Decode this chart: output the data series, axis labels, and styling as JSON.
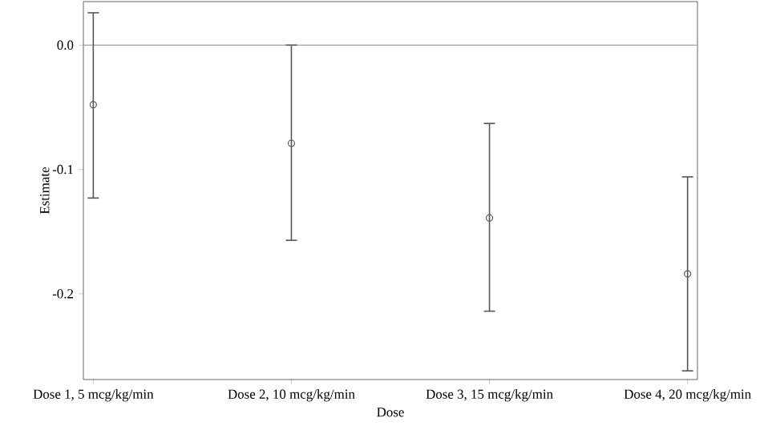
{
  "chart_data": {
    "type": "scatter",
    "xlabel": "Dose",
    "ylabel": "Estimate",
    "categories": [
      "Dose 1, 5 mcg/kg/min",
      "Dose 2, 10 mcg/kg/min",
      "Dose 3, 15 mcg/kg/min",
      "Dose 4, 20 mcg/kg/min"
    ],
    "values": [
      -0.048,
      -0.079,
      -0.139,
      -0.184
    ],
    "errors": [
      [
        -0.123,
        0.026
      ],
      [
        -0.157,
        0.0
      ],
      [
        -0.214,
        -0.063
      ],
      [
        -0.262,
        -0.106
      ]
    ],
    "color": "#555555",
    "marker": "circle",
    "ylim": [
      -0.269,
      0.035
    ],
    "yticks": [
      {
        "value": 0.0,
        "label": "0.0"
      },
      {
        "value": -0.1,
        "label": "-0.1"
      },
      {
        "value": -0.2,
        "label": "-0.2"
      }
    ],
    "ref_lines": [
      {
        "axis": "y",
        "value": 0.0,
        "color": "#a0a0a0"
      }
    ],
    "grid": false
  }
}
